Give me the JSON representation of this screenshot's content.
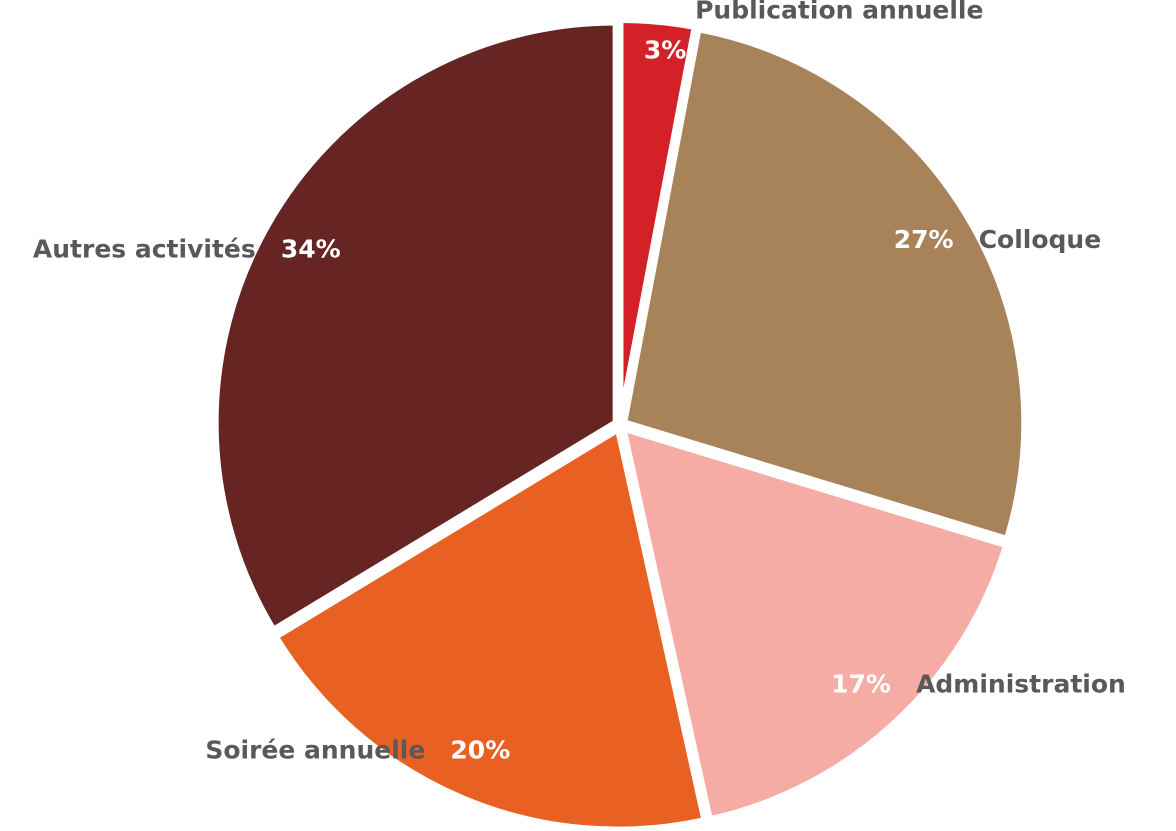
{
  "chart_data": {
    "type": "pie",
    "categories": [
      "Publication annuelle",
      "Colloque",
      "Administration",
      "Soirée annuelle",
      "Autres activités"
    ],
    "values": [
      3,
      27,
      17,
      20,
      34
    ],
    "value_labels": [
      "3%",
      "27%",
      "17%",
      "20%",
      "34%"
    ],
    "colors": [
      "#d42027",
      "#a8835a",
      "#f5aca5",
      "#e96023",
      "#662522"
    ]
  }
}
